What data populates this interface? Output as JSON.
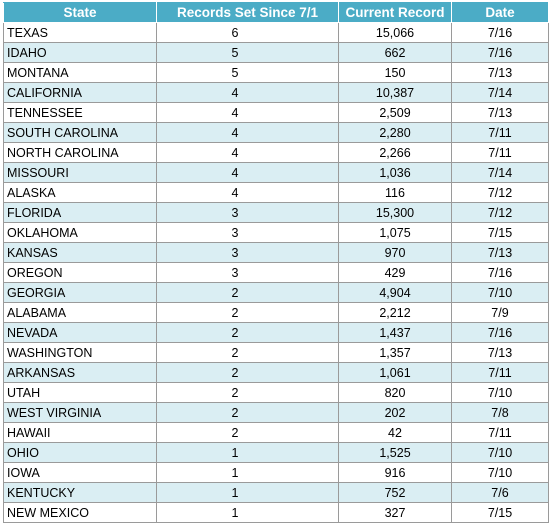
{
  "table": {
    "headers": [
      "State",
      "Records Set Since 7/1",
      "Current Record",
      "Date"
    ],
    "rows": [
      [
        "TEXAS",
        "6",
        "15,066",
        "7/16"
      ],
      [
        "IDAHO",
        "5",
        "662",
        "7/16"
      ],
      [
        "MONTANA",
        "5",
        "150",
        "7/13"
      ],
      [
        "CALIFORNIA",
        "4",
        "10,387",
        "7/14"
      ],
      [
        "TENNESSEE",
        "4",
        "2,509",
        "7/13"
      ],
      [
        "SOUTH CAROLINA",
        "4",
        "2,280",
        "7/11"
      ],
      [
        "NORTH CAROLINA",
        "4",
        "2,266",
        "7/11"
      ],
      [
        "MISSOURI",
        "4",
        "1,036",
        "7/14"
      ],
      [
        "ALASKA",
        "4",
        "116",
        "7/12"
      ],
      [
        "FLORIDA",
        "3",
        "15,300",
        "7/12"
      ],
      [
        "OKLAHOMA",
        "3",
        "1,075",
        "7/15"
      ],
      [
        "KANSAS",
        "3",
        "970",
        "7/13"
      ],
      [
        "OREGON",
        "3",
        "429",
        "7/16"
      ],
      [
        "GEORGIA",
        "2",
        "4,904",
        "7/10"
      ],
      [
        "ALABAMA",
        "2",
        "2,212",
        "7/9"
      ],
      [
        "NEVADA",
        "2",
        "1,437",
        "7/16"
      ],
      [
        "WASHINGTON",
        "2",
        "1,357",
        "7/13"
      ],
      [
        "ARKANSAS",
        "2",
        "1,061",
        "7/11"
      ],
      [
        "UTAH",
        "2",
        "820",
        "7/10"
      ],
      [
        "WEST VIRGINIA",
        "2",
        "202",
        "7/8"
      ],
      [
        "HAWAII",
        "2",
        "42",
        "7/11"
      ],
      [
        "OHIO",
        "1",
        "1,525",
        "7/10"
      ],
      [
        "IOWA",
        "1",
        "916",
        "7/10"
      ],
      [
        "KENTUCKY",
        "1",
        "752",
        "7/6"
      ],
      [
        "NEW MEXICO",
        "1",
        "327",
        "7/15"
      ]
    ]
  },
  "colors": {
    "header_background": "#4bacc6",
    "band_background": "#daeef3",
    "grid_line": "#9a9a9a"
  }
}
